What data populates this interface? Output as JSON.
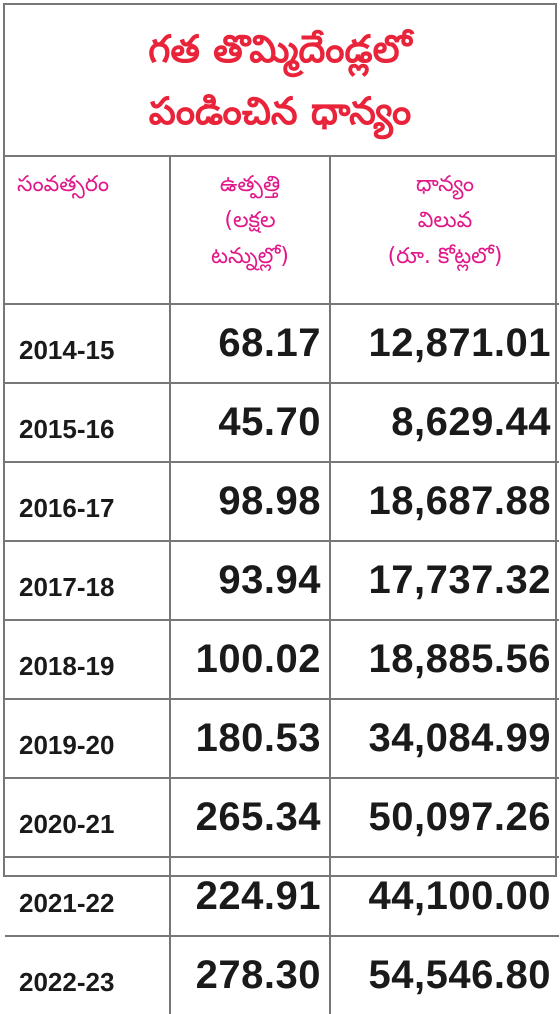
{
  "title": {
    "line1": "గత తొమ్మిదేండ్లలో",
    "line2": "పండించిన ధాన్యం"
  },
  "headers": {
    "col1": "సంవత్సరం",
    "col2_line1": "ఉత్పత్తి",
    "col2_line2": "(లక్షల",
    "col2_line3": "టన్నుల్లో)",
    "col3_line1": "ధాన్యం",
    "col3_line2": "విలువ",
    "col3_line3": "(రూ. కోట్లలో)"
  },
  "rows": [
    {
      "year": "2014-15",
      "production": "68.17",
      "value": "12,871.01"
    },
    {
      "year": "2015-16",
      "production": "45.70",
      "value": "8,629.44"
    },
    {
      "year": "2016-17",
      "production": "98.98",
      "value": "18,687.88"
    },
    {
      "year": "2017-18",
      "production": "93.94",
      "value": "17,737.32"
    },
    {
      "year": "2018-19",
      "production": "100.02",
      "value": "18,885.56"
    },
    {
      "year": "2019-20",
      "production": "180.53",
      "value": "34,084.99"
    },
    {
      "year": "2020-21",
      "production": "265.34",
      "value": "50,097.26"
    },
    {
      "year": "2021-22",
      "production": "224.91",
      "value": "44,100.00"
    },
    {
      "year": "2022-23",
      "production": "278.30",
      "value": "54,546.80"
    }
  ],
  "colors": {
    "title": "#e8233a",
    "header": "#e0188a",
    "border": "#777777"
  }
}
